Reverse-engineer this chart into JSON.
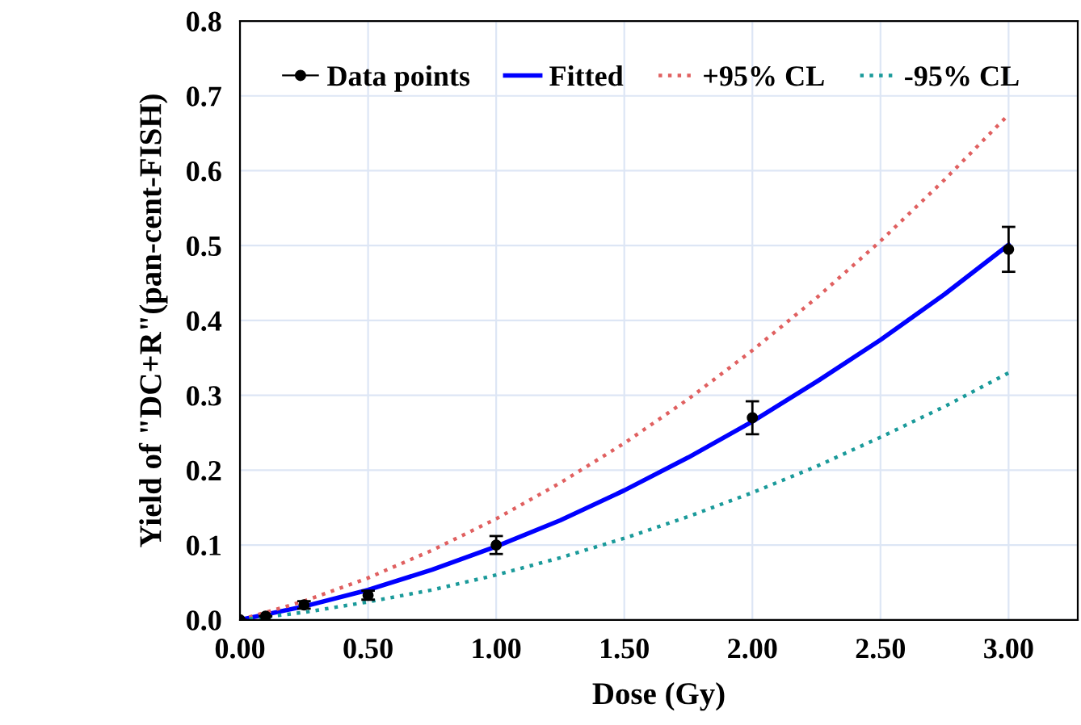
{
  "chart_data": {
    "type": "line",
    "xlabel": "Dose (Gy)",
    "ylabel": "Yield of \"DC+R\"(pan-cent-FISH)",
    "xlim": [
      0,
      3.27
    ],
    "ylim": [
      0,
      0.8
    ],
    "xticks": [
      {
        "value": 0,
        "label": "0.00"
      },
      {
        "value": 0.5,
        "label": "0.50"
      },
      {
        "value": 1,
        "label": "1.00"
      },
      {
        "value": 1.5,
        "label": "1.50"
      },
      {
        "value": 2,
        "label": "2.00"
      },
      {
        "value": 2.5,
        "label": "2.50"
      },
      {
        "value": 3,
        "label": "3.00"
      }
    ],
    "yticks": [
      {
        "value": 0,
        "label": "0.0"
      },
      {
        "value": 0.1,
        "label": "0.1"
      },
      {
        "value": 0.2,
        "label": "0.2"
      },
      {
        "value": 0.3,
        "label": "0.3"
      },
      {
        "value": 0.4,
        "label": "0.4"
      },
      {
        "value": 0.5,
        "label": "0.5"
      },
      {
        "value": 0.6,
        "label": "0.6"
      },
      {
        "value": 0.7,
        "label": "0.7"
      },
      {
        "value": 0.8,
        "label": "0.8"
      }
    ],
    "grid": true,
    "legend": "top left",
    "series": [
      {
        "name": "Data points",
        "type": "scatter",
        "color": "#000000",
        "marker": "circle",
        "x": [
          0,
          0.1,
          0.25,
          0.5,
          1,
          2,
          3
        ],
        "values": [
          0,
          0.005,
          0.02,
          0.033,
          0.1,
          0.27,
          0.495
        ],
        "errors": [
          null,
          null,
          0.005,
          0.006,
          0.012,
          0.022,
          0.03
        ]
      },
      {
        "name": "Fitted",
        "color": "#0000ff",
        "line_style": "solid",
        "x": [
          0,
          0.25,
          0.5,
          0.75,
          1,
          1.25,
          1.5,
          1.75,
          2,
          2.25,
          2.5,
          2.75,
          3
        ],
        "values": [
          0,
          0.018,
          0.04,
          0.067,
          0.098,
          0.133,
          0.173,
          0.217,
          0.265,
          0.318,
          0.374,
          0.435,
          0.501
        ]
      },
      {
        "name": "+95% CL",
        "color": "#e06060",
        "line_style": "dotted",
        "x": [
          0,
          0.25,
          0.5,
          0.75,
          1,
          1.25,
          1.5,
          1.75,
          2,
          2.25,
          2.5,
          2.75,
          3
        ],
        "values": [
          0,
          0.025,
          0.056,
          0.093,
          0.135,
          0.183,
          0.236,
          0.295,
          0.36,
          0.43,
          0.506,
          0.588,
          0.675
        ]
      },
      {
        "name": "-95% CL",
        "color": "#1a9a9a",
        "line_style": "dotted",
        "x": [
          0,
          0.25,
          0.5,
          0.75,
          1,
          1.25,
          1.5,
          1.75,
          2,
          2.25,
          2.5,
          2.75,
          3
        ],
        "values": [
          0,
          0.01,
          0.024,
          0.04,
          0.06,
          0.083,
          0.109,
          0.138,
          0.17,
          0.205,
          0.244,
          0.285,
          0.33
        ]
      }
    ]
  }
}
